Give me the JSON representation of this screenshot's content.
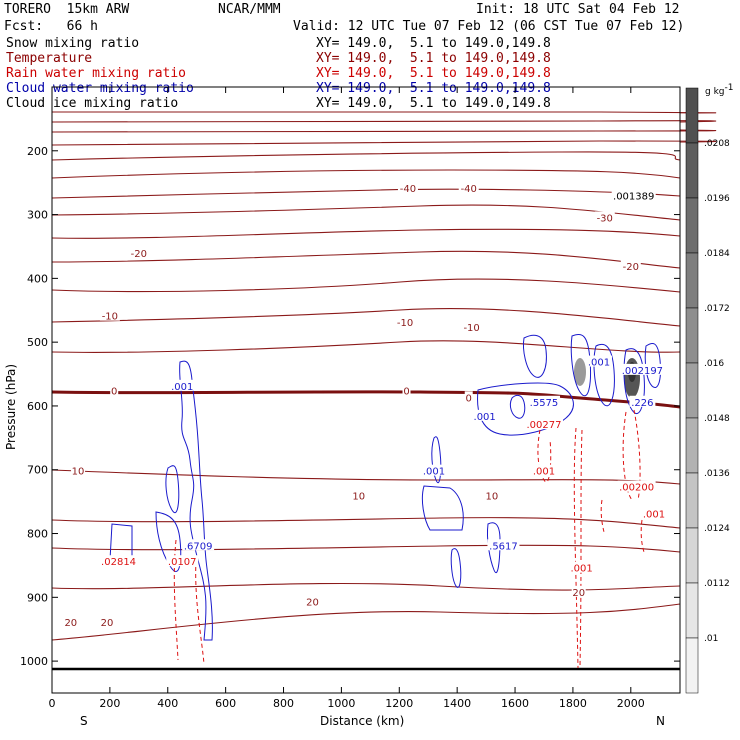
{
  "header": {
    "model": "TORERO  15km ARW",
    "center": "NCAR/MMM",
    "init": "Init: 18 UTC Sat 04 Feb 12",
    "fcst": "Fcst:   66 h",
    "valid": "Valid: 12 UTC Tue 07 Feb 12 (06 CST Tue 07 Feb 12)"
  },
  "legend": [
    {
      "label": "Snow mixing ratio",
      "xy": "XY= 149.0,  5.1 to 149.0,149.8",
      "color": "#000000"
    },
    {
      "label": "Temperature",
      "xy": "XY= 149.0,  5.1 to 149.0,149.8",
      "color": "#8b0000"
    },
    {
      "label": "Rain water mixing ratio",
      "xy": "XY= 149.0,  5.1 to 149.0,149.8",
      "color": "#cc0000"
    },
    {
      "label": "Cloud water mixing ratio",
      "xy": "XY= 149.0,  5.1 to 149.0,149.8",
      "color": "#0000aa"
    },
    {
      "label": "Cloud ice mixing ratio",
      "xy": "XY= 149.0,  5.1 to 149.0,149.8",
      "color": "#000000"
    }
  ],
  "chart_data": {
    "type": "contour",
    "xlabel": "Distance (km)",
    "ylabel": "Pressure (hPa)",
    "xlim": [
      0,
      2170
    ],
    "ylim": [
      1050,
      100
    ],
    "x_ticks": [
      0,
      200,
      400,
      600,
      800,
      1000,
      1200,
      1400,
      1600,
      1800,
      2000
    ],
    "y_ticks": [
      200,
      300,
      400,
      500,
      600,
      700,
      800,
      900,
      1000
    ],
    "x_end_labels": {
      "left": "S",
      "right": "N"
    },
    "colorbar": {
      "unit": "g kg",
      "unit_exp": "-1",
      "labels": [
        ".0208",
        ".0196",
        ".0184",
        ".0172",
        ".016",
        ".0148",
        ".0136",
        ".0124",
        ".0112",
        ".01"
      ],
      "colors": [
        "#505050",
        "#5e5e5e",
        "#6e6e6e",
        "#7e7e7e",
        "#8e8e8e",
        "#a0a0a0",
        "#b2b2b2",
        "#c4c4c4",
        "#d6d6d6",
        "#e6e6e6",
        "#f2f2f2"
      ]
    },
    "temperature_labels": [
      {
        "text": "-40",
        "x": 1230,
        "p": 260
      },
      {
        "text": "-40",
        "x": 1440,
        "p": 260
      },
      {
        "text": "-30",
        "x": 1910,
        "p": 306
      },
      {
        "text": "-20",
        "x": 300,
        "p": 362
      },
      {
        "text": "-20",
        "x": 2000,
        "p": 382
      },
      {
        "text": "-10",
        "x": 200,
        "p": 460
      },
      {
        "text": "-10",
        "x": 1220,
        "p": 470
      },
      {
        "text": "-10",
        "x": 1450,
        "p": 478
      },
      {
        "text": "0",
        "x": 215,
        "p": 577
      },
      {
        "text": "0",
        "x": 1225,
        "p": 577
      },
      {
        "text": "0",
        "x": 1440,
        "p": 588
      },
      {
        "text": "10",
        "x": 90,
        "p": 703
      },
      {
        "text": "10",
        "x": 1060,
        "p": 742
      },
      {
        "text": "10",
        "x": 1520,
        "p": 742
      },
      {
        "text": "20",
        "x": 900,
        "p": 908
      },
      {
        "text": "20",
        "x": 65,
        "p": 940
      },
      {
        "text": "20",
        "x": 190,
        "p": 940
      },
      {
        "text": "20",
        "x": 1820,
        "p": 893
      }
    ],
    "cloud_water_labels": [
      {
        "text": ".001",
        "x": 450,
        "p": 570
      },
      {
        "text": ".001",
        "x": 1320,
        "p": 703
      },
      {
        "text": ".001",
        "x": 1495,
        "p": 617
      },
      {
        "text": ".5575",
        "x": 1700,
        "p": 595
      },
      {
        "text": ".001",
        "x": 1890,
        "p": 532
      },
      {
        "text": ".6709",
        "x": 505,
        "p": 820
      },
      {
        "text": ".226",
        "x": 2040,
        "p": 595
      },
      {
        "text": ".002197",
        "x": 2040,
        "p": 545
      },
      {
        "text": ".5617",
        "x": 1560,
        "p": 820
      }
    ],
    "rain_labels": [
      {
        "text": ".001",
        "x": 1700,
        "p": 703
      },
      {
        "text": ".001",
        "x": 1830,
        "p": 855
      },
      {
        "text": ".00200",
        "x": 2020,
        "p": 728
      },
      {
        "text": ".001",
        "x": 2080,
        "p": 770
      },
      {
        "text": ".00277",
        "x": 1700,
        "p": 630
      },
      {
        "text": ".0107",
        "x": 450,
        "p": 845
      },
      {
        "text": ".02814",
        "x": 230,
        "p": 845
      }
    ],
    "snow_labels": [
      {
        "text": ".001389",
        "x": 2010,
        "p": 272
      }
    ]
  }
}
